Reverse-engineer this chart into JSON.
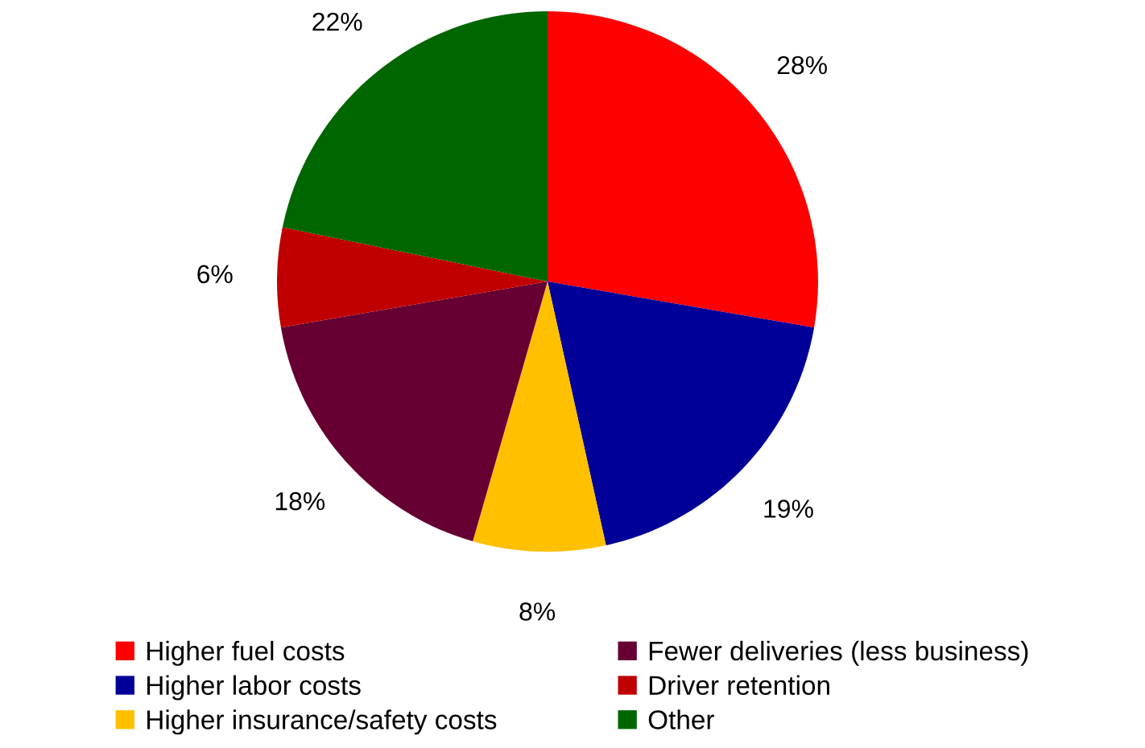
{
  "chart_data": {
    "type": "pie",
    "categories": [
      "Higher fuel costs",
      "Higher labor costs",
      "Higher insurance/safety costs",
      "Fewer deliveries (less business)",
      "Driver retention",
      "Other"
    ],
    "values": [
      28,
      19,
      8,
      18,
      6,
      22
    ],
    "colors": [
      "#ff0000",
      "#000099",
      "#ffc000",
      "#660033",
      "#c00000",
      "#006600"
    ],
    "value_labels": [
      "28%",
      "19%",
      "8%",
      "18%",
      "6%",
      "22%"
    ],
    "legend": "bottom"
  }
}
